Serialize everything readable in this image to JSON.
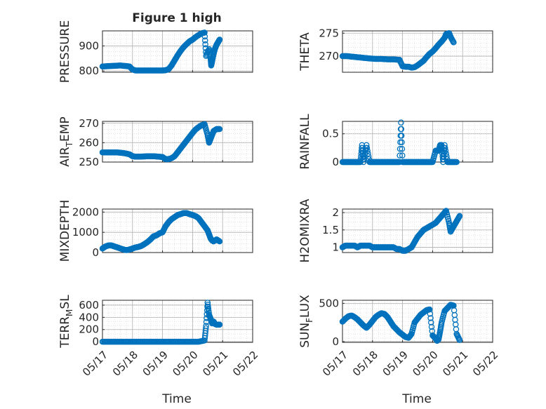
{
  "figure": {
    "title": "Figure 1 high"
  },
  "x_ticks": [
    "05/17",
    "05/18",
    "05/19",
    "05/20",
    "05/21",
    "05/22"
  ],
  "x_label": "Time",
  "colors": {
    "marker": "#0072BD",
    "axis": "#262626",
    "grid": "#b0b0b0",
    "minor_grid": "#d8d8d8"
  },
  "chart_data": [
    {
      "type": "scatter",
      "title": "Figure 1 high",
      "ylabel": "PRESSURE",
      "xlim": [
        "05/17",
        "05/22"
      ],
      "ylim": [
        795,
        960
      ],
      "yticks": [
        800,
        900
      ],
      "x": [
        17.0,
        17.15,
        17.3,
        17.45,
        17.6,
        17.75,
        17.9,
        18.0,
        18.1,
        18.25,
        18.4,
        18.55,
        18.7,
        18.85,
        19.0,
        19.1,
        19.2,
        19.3,
        19.4,
        19.5,
        19.6,
        19.7,
        19.8,
        19.9,
        20.0,
        20.1,
        20.2,
        20.3,
        20.4,
        20.45,
        20.55,
        20.6,
        20.62,
        20.65,
        20.7,
        20.75,
        20.8,
        20.85,
        20.9
      ],
      "y": [
        818,
        819,
        820,
        821,
        822,
        820,
        818,
        806,
        802,
        802,
        802,
        802,
        802,
        802,
        802,
        803,
        807,
        822,
        842,
        862,
        880,
        895,
        907,
        918,
        925,
        935,
        943,
        950,
        953,
        860,
        887,
        850,
        822,
        838,
        868,
        890,
        905,
        915,
        925
      ]
    },
    {
      "type": "scatter",
      "title": "",
      "ylabel": "THETA",
      "xlim": [
        "05/17",
        "05/22"
      ],
      "ylim": [
        266.5,
        275.5
      ],
      "yticks": [
        270,
        275
      ],
      "x": [
        17.0,
        17.15,
        17.3,
        17.45,
        17.6,
        17.75,
        17.9,
        18.1,
        18.3,
        18.5,
        18.7,
        18.9,
        19.0,
        19.1,
        19.2,
        19.3,
        19.4,
        19.5,
        19.6,
        19.7,
        19.8,
        19.9,
        20.0,
        20.1,
        20.2,
        20.3,
        20.4,
        20.45,
        20.55,
        20.6,
        20.7
      ],
      "y": [
        270.0,
        270.0,
        269.9,
        269.8,
        269.7,
        269.6,
        269.5,
        269.4,
        269.4,
        269.3,
        269.3,
        269.2,
        267.8,
        267.7,
        267.7,
        267.5,
        267.6,
        268.0,
        268.5,
        269.0,
        269.8,
        270.5,
        271.0,
        271.7,
        272.5,
        273.2,
        274.0,
        274.8,
        275.0,
        274.2,
        273.0
      ]
    },
    {
      "type": "scatter",
      "title": "",
      "ylabel": "AIR_TEMP",
      "xlim": [
        "05/17",
        "05/22"
      ],
      "ylim": [
        250,
        271
      ],
      "yticks": [
        250,
        260,
        270
      ],
      "x": [
        17.0,
        17.15,
        17.3,
        17.45,
        17.6,
        17.75,
        17.9,
        18.0,
        18.1,
        18.25,
        18.4,
        18.55,
        18.7,
        18.85,
        19.0,
        19.1,
        19.2,
        19.3,
        19.4,
        19.5,
        19.6,
        19.7,
        19.8,
        19.9,
        20.0,
        20.1,
        20.2,
        20.3,
        20.4,
        20.5,
        20.55,
        20.6,
        20.65,
        20.7,
        20.8,
        20.9
      ],
      "y": [
        255.0,
        255.0,
        255.0,
        255.0,
        254.8,
        254.5,
        254.0,
        253.0,
        252.8,
        252.8,
        252.9,
        253.0,
        253.0,
        252.8,
        252.6,
        251.5,
        251.5,
        252.0,
        253.0,
        255.0,
        257.0,
        259.0,
        261.0,
        263.0,
        265.0,
        266.8,
        268.0,
        269.0,
        269.5,
        264.0,
        260.0,
        262.0,
        264.0,
        266.0,
        267.0,
        267.0
      ]
    },
    {
      "type": "scatter",
      "title": "",
      "ylabel": "RAINFALL",
      "xlim": [
        "05/17",
        "05/22"
      ],
      "ylim": [
        0,
        0.72
      ],
      "yticks": [
        0,
        0.5
      ],
      "x": [
        17.0,
        17.1,
        17.2,
        17.3,
        17.4,
        17.5,
        17.6,
        17.65,
        17.7,
        17.8,
        17.9,
        18.0,
        18.1,
        18.2,
        18.3,
        18.4,
        18.5,
        18.6,
        18.7,
        18.8,
        18.9,
        18.95,
        19.0,
        19.1,
        19.2,
        19.3,
        19.4,
        19.5,
        19.6,
        19.7,
        19.8,
        19.9,
        20.0,
        20.1,
        20.15,
        20.2,
        20.25,
        20.3,
        20.35,
        20.4,
        20.5,
        20.6,
        20.7,
        20.8
      ],
      "y": [
        0,
        0,
        0,
        0,
        0,
        0,
        0,
        0.3,
        0,
        0.3,
        0,
        0,
        0,
        0,
        0,
        0,
        0,
        0,
        0,
        0,
        0,
        0.7,
        0,
        0,
        0,
        0,
        0,
        0,
        0,
        0,
        0,
        0,
        0,
        0.2,
        0.2,
        0.2,
        0.3,
        0.3,
        0,
        0.3,
        0,
        0,
        0,
        0
      ]
    },
    {
      "type": "scatter",
      "title": "",
      "ylabel": "MIXDEPTH",
      "xlim": [
        "05/17",
        "05/22"
      ],
      "ylim": [
        0,
        2150
      ],
      "yticks": [
        0,
        1000,
        2000
      ],
      "x": [
        17.0,
        17.1,
        17.2,
        17.3,
        17.4,
        17.5,
        17.6,
        17.7,
        17.8,
        17.9,
        18.0,
        18.1,
        18.2,
        18.3,
        18.4,
        18.5,
        18.6,
        18.7,
        18.8,
        18.9,
        19.0,
        19.1,
        19.2,
        19.3,
        19.4,
        19.5,
        19.6,
        19.7,
        19.8,
        19.9,
        20.0,
        20.1,
        20.2,
        20.3,
        20.4,
        20.5,
        20.55,
        20.6,
        20.65,
        20.7,
        20.8,
        20.9
      ],
      "y": [
        200,
        300,
        350,
        350,
        300,
        250,
        200,
        150,
        120,
        150,
        200,
        250,
        280,
        330,
        420,
        520,
        650,
        800,
        850,
        950,
        1000,
        1300,
        1500,
        1650,
        1750,
        1850,
        1900,
        1950,
        1950,
        1900,
        1850,
        1800,
        1700,
        1500,
        1300,
        1100,
        900,
        700,
        600,
        550,
        650,
        550
      ]
    },
    {
      "type": "scatter",
      "title": "",
      "ylabel": "H2OMIXRA",
      "xlim": [
        "05/17",
        "05/22"
      ],
      "ylim": [
        0.85,
        2.1
      ],
      "yticks": [
        1,
        1.5,
        2
      ],
      "x": [
        17.0,
        17.1,
        17.2,
        17.3,
        17.4,
        17.5,
        17.6,
        17.7,
        17.8,
        17.9,
        18.0,
        18.1,
        18.2,
        18.3,
        18.4,
        18.5,
        18.6,
        18.7,
        18.8,
        18.9,
        19.0,
        19.1,
        19.2,
        19.3,
        19.4,
        19.5,
        19.6,
        19.7,
        19.8,
        19.9,
        20.0,
        20.1,
        20.2,
        20.3,
        20.4,
        20.45,
        20.55,
        20.6,
        20.7,
        20.8,
        20.9
      ],
      "y": [
        1.0,
        1.05,
        1.05,
        1.05,
        1.05,
        1.0,
        1.05,
        1.05,
        1.05,
        1.05,
        1.0,
        1.0,
        1.0,
        1.0,
        1.0,
        1.0,
        1.0,
        1.0,
        0.95,
        0.95,
        0.9,
        0.9,
        0.95,
        1.0,
        1.15,
        1.3,
        1.4,
        1.5,
        1.55,
        1.6,
        1.65,
        1.7,
        1.8,
        1.9,
        2.0,
        2.05,
        1.7,
        1.45,
        1.6,
        1.75,
        1.9
      ]
    },
    {
      "type": "scatter",
      "title": "",
      "ylabel": "TERR_MSL",
      "xlim": [
        "05/17",
        "05/22"
      ],
      "ylim": [
        -10,
        680
      ],
      "yticks": [
        0,
        200,
        400,
        600
      ],
      "x": [
        17.0,
        17.2,
        17.4,
        17.6,
        17.8,
        18.0,
        18.2,
        18.4,
        18.6,
        18.8,
        19.0,
        19.2,
        19.4,
        19.6,
        19.8,
        20.0,
        20.2,
        20.4,
        20.45,
        20.5,
        20.55,
        20.6,
        20.65,
        20.7,
        20.75,
        20.8,
        20.85,
        20.9
      ],
      "y": [
        0,
        0,
        0,
        0,
        0,
        0,
        0,
        0,
        0,
        0,
        0,
        0,
        0,
        0,
        0,
        0,
        0,
        20,
        260,
        640,
        440,
        380,
        300,
        330,
        290,
        280,
        280,
        280
      ]
    },
    {
      "type": "scatter",
      "title": "",
      "ylabel": "SUN_FLUX",
      "xlim": [
        "05/17",
        "05/22"
      ],
      "ylim": [
        -10,
        540
      ],
      "yticks": [
        0,
        500
      ],
      "x": [
        17.0,
        17.1,
        17.2,
        17.3,
        17.4,
        17.5,
        17.6,
        17.7,
        17.8,
        17.9,
        18.0,
        18.1,
        18.2,
        18.3,
        18.4,
        18.5,
        18.6,
        18.7,
        18.8,
        18.9,
        19.0,
        19.1,
        19.2,
        19.3,
        19.4,
        19.5,
        19.6,
        19.7,
        19.8,
        19.9,
        20.0,
        20.1,
        20.15,
        20.2,
        20.25,
        20.3,
        20.4,
        20.5,
        20.55,
        20.6,
        20.7,
        20.8,
        20.9
      ],
      "y": [
        260,
        300,
        330,
        340,
        320,
        290,
        250,
        210,
        180,
        220,
        270,
        320,
        350,
        370,
        360,
        320,
        260,
        200,
        160,
        120,
        90,
        60,
        50,
        100,
        250,
        300,
        350,
        380,
        410,
        420,
        80,
        40,
        10,
        30,
        130,
        250,
        400,
        440,
        460,
        480,
        470,
        100,
        20
      ]
    }
  ]
}
